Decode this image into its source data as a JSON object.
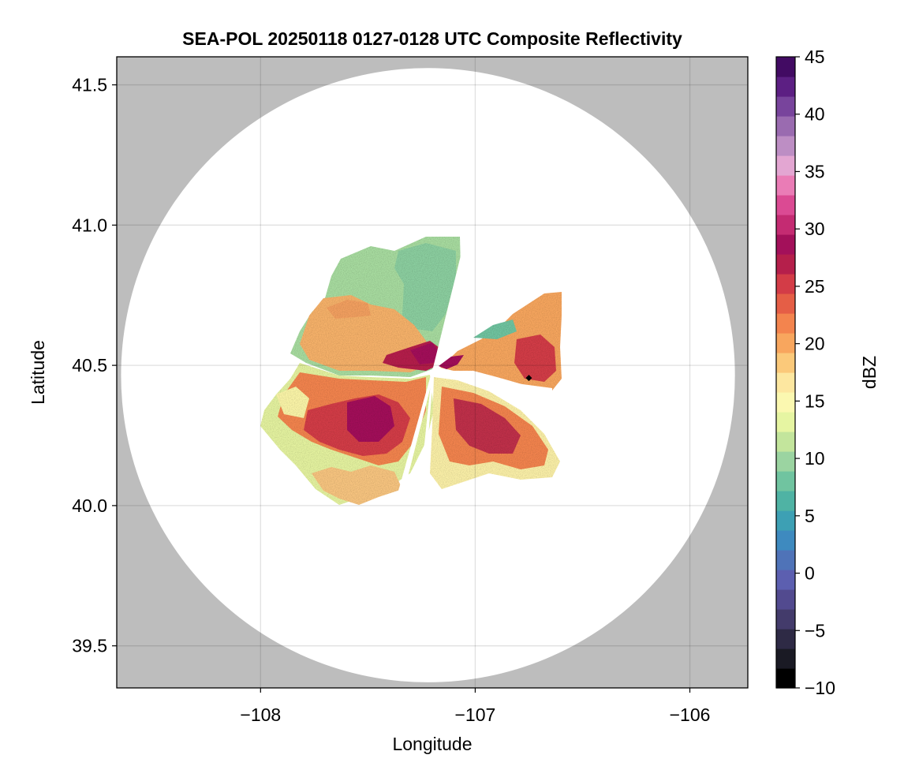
{
  "chart_data": {
    "type": "heatmap",
    "title": "SEA-POL 20250118 0127-0128 UTC Composite Reflectivity",
    "xlabel": "Longitude",
    "ylabel": "Latitude",
    "xlim": [
      -108.67,
      -105.73
    ],
    "ylim": [
      39.35,
      41.6
    ],
    "xticks": [
      -108,
      -107,
      -106
    ],
    "yticks": [
      39.5,
      40.0,
      40.5,
      41.0,
      41.5
    ],
    "xtick_labels": [
      "−108",
      "−107",
      "−106"
    ],
    "ytick_labels": [
      "39.5",
      "40.0",
      "40.5",
      "41.0",
      "41.5"
    ],
    "grid": true,
    "background_color": "#bdbdbd",
    "radar": {
      "center_lon": -107.22,
      "center_lat": 40.465,
      "lon_radius": 1.43,
      "lat_radius": 1.095,
      "coverage_color": "#ffffff"
    },
    "marker": {
      "lon": -106.75,
      "lat": 40.455,
      "shape": "diamond",
      "color": "#000000"
    },
    "colorbar": {
      "label": "dBZ",
      "min": -10,
      "max": 45,
      "ticks": [
        -10,
        -5,
        0,
        5,
        10,
        15,
        20,
        25,
        30,
        35,
        40,
        45
      ],
      "tick_labels": [
        "−10",
        "−5",
        "0",
        "5",
        "10",
        "15",
        "20",
        "25",
        "30",
        "35",
        "40",
        "45"
      ],
      "colormap": "spectral_r",
      "colors": [
        "#000000",
        "#1a1a24",
        "#2e2a45",
        "#433b6b",
        "#524a8f",
        "#5c5fb0",
        "#4f73b8",
        "#3e8abf",
        "#3da0b4",
        "#4fb3a4",
        "#70c4a0",
        "#9bd4a1",
        "#c3e59c",
        "#e6f5a2",
        "#fbf8b0",
        "#fde7a0",
        "#fbc97a",
        "#f8a65e",
        "#f3844e",
        "#e55e46",
        "#d33c47",
        "#b51f4b",
        "#a3105a",
        "#c42b72",
        "#db4a93",
        "#ea7cb6",
        "#e3a6d2",
        "#bd8ec4",
        "#9a6bb0",
        "#78449c",
        "#5c1f83",
        "#420b63"
      ]
    },
    "echo_regions": [
      {
        "name": "northwest",
        "dbz": [
          5,
          38
        ]
      },
      {
        "name": "northeast",
        "dbz": [
          5,
          40
        ]
      },
      {
        "name": "southwest",
        "dbz": [
          5,
          37
        ]
      },
      {
        "name": "southeast",
        "dbz": [
          5,
          33
        ]
      }
    ]
  }
}
